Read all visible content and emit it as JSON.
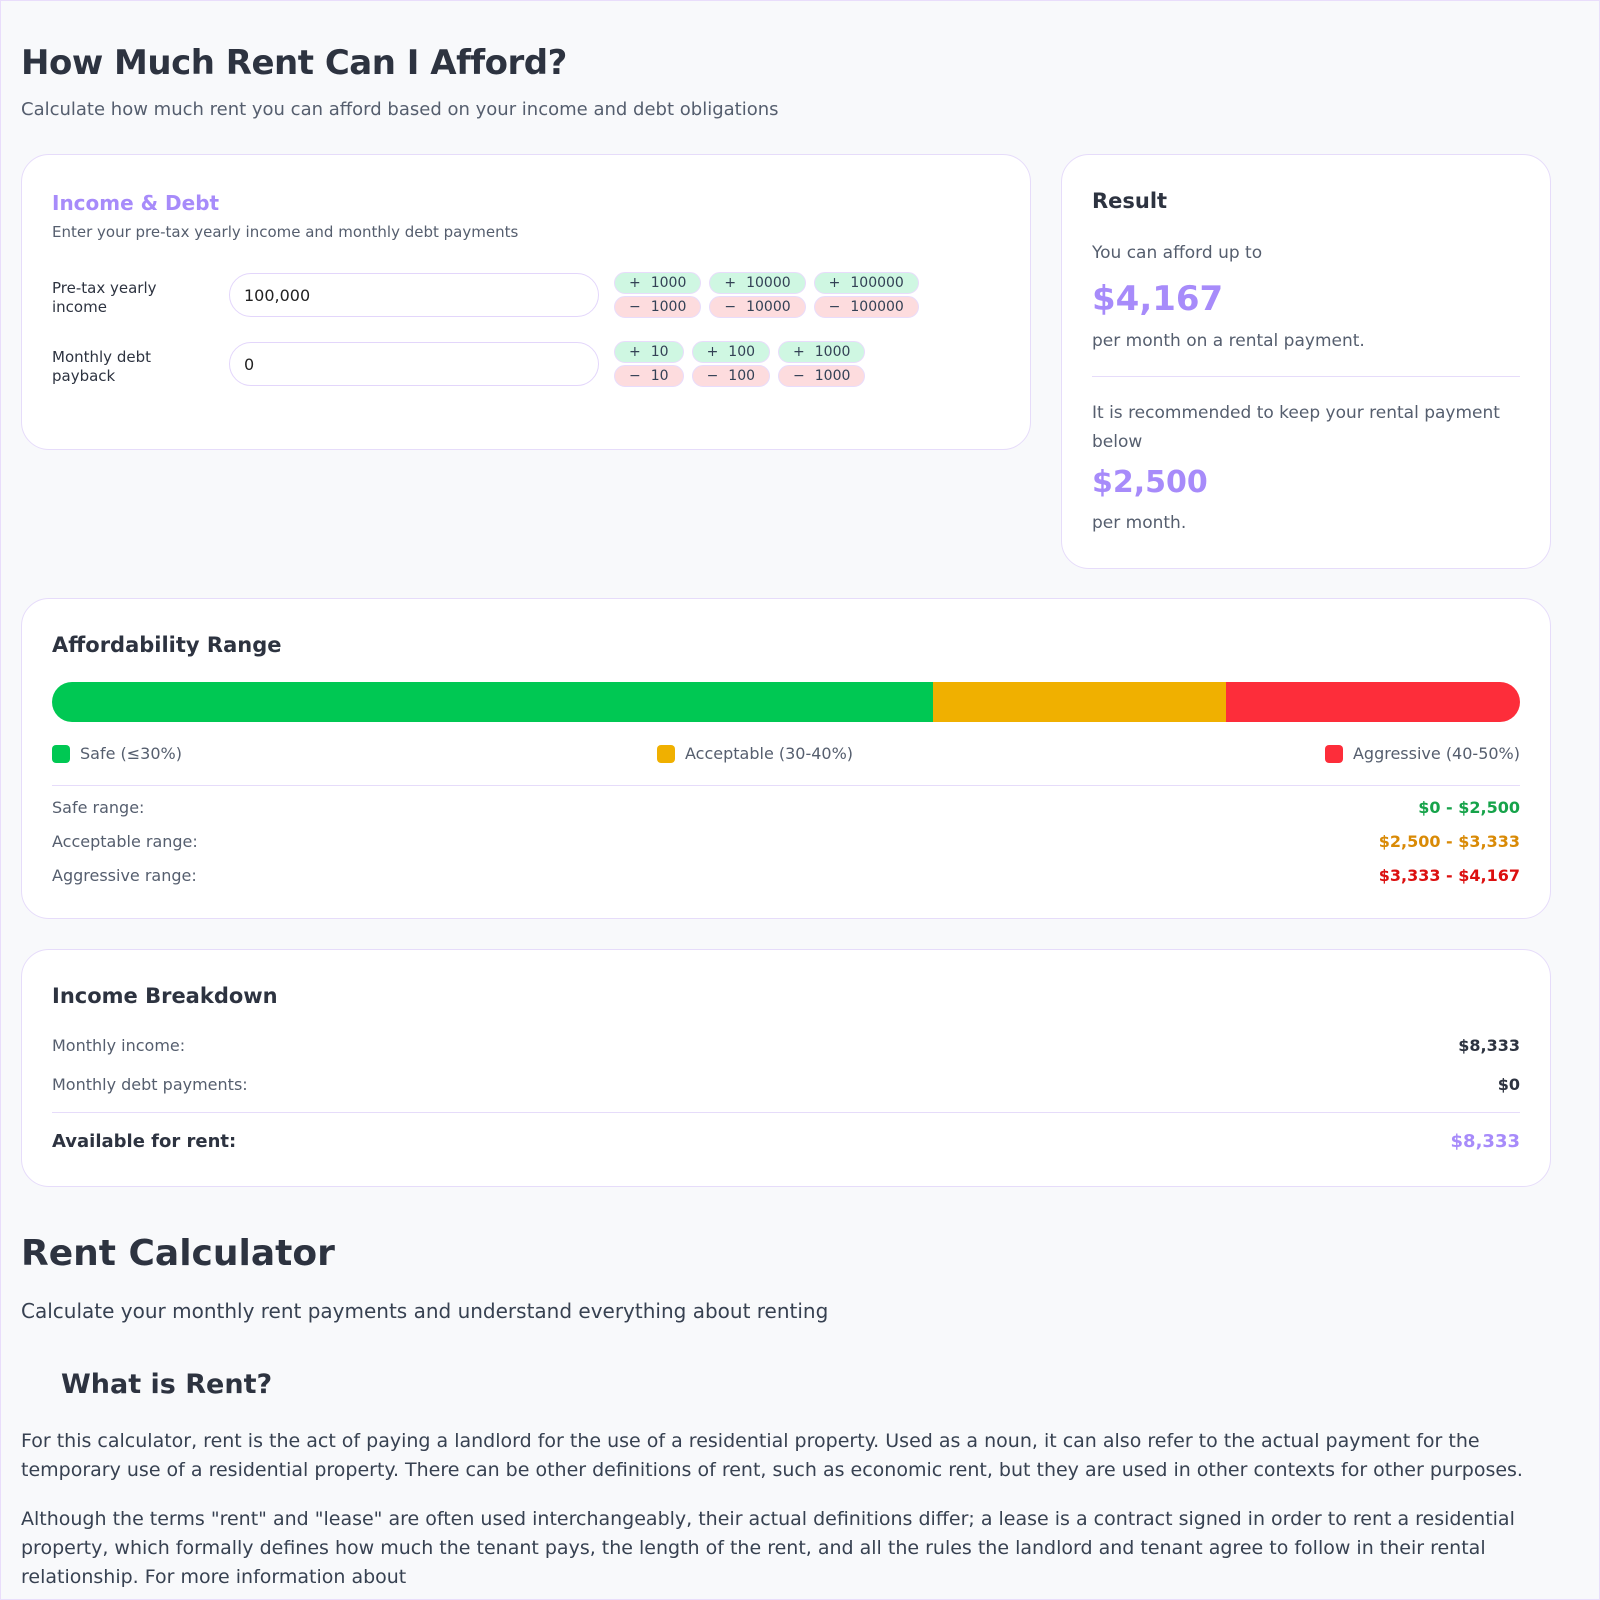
{
  "header": {
    "title": "How Much Rent Can I Afford?",
    "subtitle": "Calculate how much rent you can afford based on your income and debt obligations"
  },
  "income_card": {
    "title": "Income & Debt",
    "subtitle": "Enter your pre-tax yearly income and monthly debt payments",
    "income_label": "Pre-tax yearly income",
    "income_value": "100,000",
    "debt_label": "Monthly debt payback",
    "debt_value": "0",
    "income_steps": [
      "1000",
      "10000",
      "100000"
    ],
    "debt_steps": [
      "10",
      "100",
      "1000"
    ],
    "plus": "+",
    "minus": "−"
  },
  "result": {
    "title": "Result",
    "intro": "You can afford up to",
    "max": "$4,167",
    "max_suffix": "per month on a rental payment.",
    "rec_intro": "It is recommended to keep your rental payment below",
    "rec": "$2,500",
    "rec_suffix": "per month."
  },
  "range": {
    "title": "Affordability Range",
    "segments": [
      {
        "label": "Safe (≤30%)",
        "color": "#00c853",
        "share": 60
      },
      {
        "label": "Acceptable (30-40%)",
        "color": "#f0b000",
        "share": 20
      },
      {
        "label": "Aggressive (40-50%)",
        "color": "#fd2d3a",
        "share": 20
      }
    ],
    "rows": [
      {
        "label": "Safe range:",
        "value": "$0 - $2,500",
        "color": "#16a34a"
      },
      {
        "label": "Acceptable range:",
        "value": "$2,500 - $3,333",
        "color": "#d98a06"
      },
      {
        "label": "Aggressive range:",
        "value": "$3,333 - $4,167",
        "color": "#dc1010"
      }
    ]
  },
  "breakdown": {
    "title": "Income Breakdown",
    "monthly_income_label": "Monthly income:",
    "monthly_income": "$8,333",
    "debt_label": "Monthly debt payments:",
    "debt": "$0",
    "available_label": "Available for rent:",
    "available": "$8,333"
  },
  "article": {
    "title": "Rent Calculator",
    "subtitle": "Calculate your monthly rent payments and understand everything about renting",
    "h2": "What is Rent?",
    "p1": "For this calculator, rent is the act of paying a landlord for the use of a residential property. Used as a noun, it can also refer to the actual payment for the temporary use of a residential property. There can be other definitions of rent, such as economic rent, but they are used in other contexts for other purposes.",
    "p2": "Although the terms \"rent\" and \"lease\" are often used interchangeably, their actual definitions differ; a lease is a contract signed in order to rent a residential property, which formally defines how much the tenant pays, the length of the rent, and all the rules the landlord and tenant agree to follow in their rental relationship. For more information about"
  }
}
